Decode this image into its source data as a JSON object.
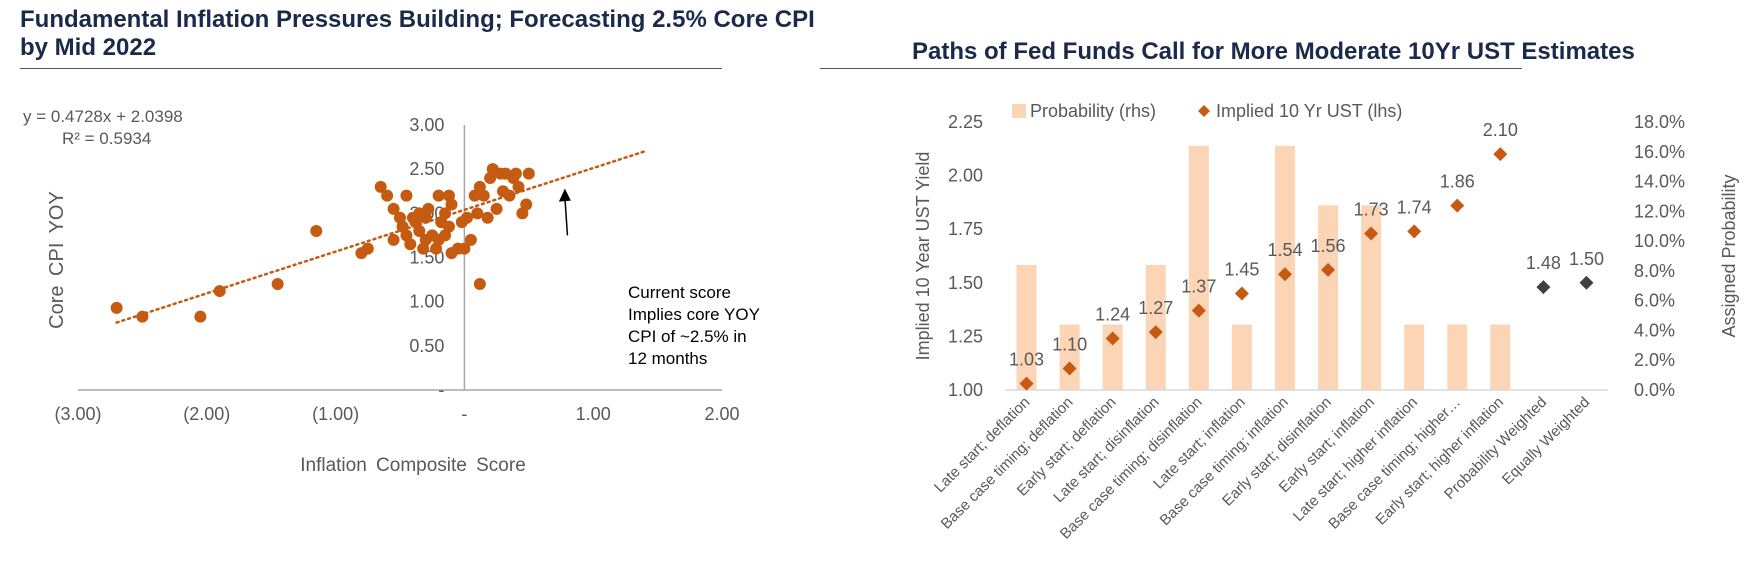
{
  "colors": {
    "title": "#1b2a4a",
    "scatter_point": "#c55a11",
    "trendline": "#c55a11",
    "bar_fill": "#fbd5b5",
    "diamond": "#c55a11",
    "weighted_diamond": "#404040",
    "axis_text": "#595959"
  },
  "left_panel": {
    "title": "Fundamental Inflation Pressures Building; Forecasting 2.5% Core CPI by Mid 2022",
    "equation": "y = 0.4728x + 2.0398",
    "r_squared": "R² = 0.5934",
    "annotation_lines": [
      "Current score",
      "Implies core YOY",
      "CPI of ~2.5% in",
      "12 months"
    ]
  },
  "right_panel": {
    "title": "Paths of Fed Funds Call for More Moderate 10Yr UST Estimates"
  },
  "chart_data": [
    {
      "type": "scatter",
      "xlabel": "Inflation Composite Score",
      "ylabel": "Core CPI YOY",
      "xlim": [
        -3.0,
        2.0
      ],
      "ylim": [
        0.0,
        3.0
      ],
      "x_ticks": [
        -3,
        -2,
        -1,
        0,
        1,
        2
      ],
      "x_tick_labels": [
        "(3.00)",
        "(2.00)",
        "(1.00)",
        "-",
        "1.00",
        "2.00"
      ],
      "y_ticks": [
        0,
        0.5,
        1,
        1.5,
        2,
        2.5,
        3
      ],
      "y_tick_labels": [
        "-",
        "0.50",
        "1.00",
        "1.50",
        "2.00",
        "2.50",
        "3.00"
      ],
      "trendline": {
        "slope": 0.4728,
        "intercept": 2.0398,
        "x_range": [
          -2.7,
          1.4
        ],
        "style": "dotted"
      },
      "points": [
        [
          -2.7,
          0.93
        ],
        [
          -2.5,
          0.83
        ],
        [
          -2.05,
          0.83
        ],
        [
          -1.9,
          1.12
        ],
        [
          -1.45,
          1.2
        ],
        [
          -1.15,
          1.8
        ],
        [
          -0.8,
          1.55
        ],
        [
          -0.75,
          1.6
        ],
        [
          -0.65,
          2.3
        ],
        [
          -0.6,
          2.2
        ],
        [
          -0.55,
          2.05
        ],
        [
          -0.55,
          1.7
        ],
        [
          -0.5,
          1.95
        ],
        [
          -0.48,
          1.85
        ],
        [
          -0.45,
          2.2
        ],
        [
          -0.45,
          1.75
        ],
        [
          -0.42,
          1.65
        ],
        [
          -0.4,
          1.95
        ],
        [
          -0.38,
          1.9
        ],
        [
          -0.35,
          2.0
        ],
        [
          -0.35,
          1.8
        ],
        [
          -0.32,
          1.6
        ],
        [
          -0.3,
          1.7
        ],
        [
          -0.3,
          1.95
        ],
        [
          -0.28,
          2.05
        ],
        [
          -0.25,
          1.75
        ],
        [
          -0.22,
          1.6
        ],
        [
          -0.2,
          1.7
        ],
        [
          -0.2,
          2.2
        ],
        [
          -0.18,
          1.9
        ],
        [
          -0.15,
          2.0
        ],
        [
          -0.15,
          1.75
        ],
        [
          -0.12,
          2.2
        ],
        [
          -0.12,
          1.85
        ],
        [
          -0.1,
          2.1
        ],
        [
          -0.1,
          1.55
        ],
        [
          -0.05,
          1.6
        ],
        [
          -0.02,
          1.9
        ],
        [
          0.0,
          1.6
        ],
        [
          0.02,
          1.95
        ],
        [
          0.05,
          1.7
        ],
        [
          0.08,
          2.2
        ],
        [
          0.1,
          2.0
        ],
        [
          0.12,
          2.3
        ],
        [
          0.12,
          1.2
        ],
        [
          0.15,
          2.2
        ],
        [
          0.18,
          1.95
        ],
        [
          0.2,
          2.4
        ],
        [
          0.22,
          2.5
        ],
        [
          0.25,
          2.05
        ],
        [
          0.28,
          2.45
        ],
        [
          0.3,
          2.25
        ],
        [
          0.32,
          2.45
        ],
        [
          0.35,
          2.2
        ],
        [
          0.38,
          2.4
        ],
        [
          0.4,
          2.45
        ],
        [
          0.42,
          2.3
        ],
        [
          0.45,
          2.0
        ],
        [
          0.48,
          2.1
        ],
        [
          0.5,
          2.45
        ]
      ],
      "annotation_arrow": {
        "from": [
          0.8,
          1.75
        ],
        "to": [
          0.78,
          2.28
        ]
      }
    },
    {
      "type": "bar",
      "categories": [
        "Late start; deflation",
        "Base case timing; deflation",
        "Early start; deflation",
        "Late start; disinflation",
        "Base case timing; disinflation",
        "Late start; inflation",
        "Base case timing; inflation",
        "Early start; disinflation",
        "Early start; inflation",
        "Late start; higher inflation",
        "Base case timing; higher…",
        "Early start; higher inflation",
        "Probability Weighted",
        "Equally Weighted"
      ],
      "ylabel_left": "Implied 10 Year UST Yield",
      "ylabel_right": "Assigned Probability",
      "ylim_left": [
        1.0,
        2.25
      ],
      "ylim_right": [
        0.0,
        0.18
      ],
      "y_left_ticks": [
        "1.00",
        "1.25",
        "1.50",
        "1.75",
        "2.00",
        "2.25"
      ],
      "y_right_ticks": [
        "0.0%",
        "2.0%",
        "4.0%",
        "6.0%",
        "8.0%",
        "10.0%",
        "12.0%",
        "14.0%",
        "16.0%",
        "18.0%"
      ],
      "legend": [
        "Probability (rhs)",
        "Implied 10 Yr UST (lhs)"
      ],
      "legend_position": "top",
      "series": [
        {
          "name": "Probability (rhs)",
          "type": "bar",
          "axis": "right",
          "values": [
            0.084,
            0.044,
            0.044,
            0.084,
            0.164,
            0.044,
            0.164,
            0.124,
            0.124,
            0.044,
            0.044,
            0.044,
            null,
            null
          ]
        },
        {
          "name": "Implied 10 Yr UST (lhs)",
          "type": "scatter-diamond",
          "axis": "left",
          "values": [
            1.03,
            1.1,
            1.24,
            1.27,
            1.37,
            1.45,
            1.54,
            1.56,
            1.73,
            1.74,
            1.86,
            2.1,
            1.48,
            1.5
          ],
          "labels": [
            "1.03",
            "1.10",
            "1.24",
            "1.27",
            "1.37",
            "1.45",
            "1.54",
            "1.56",
            "1.73",
            "1.74",
            "1.86",
            "2.10",
            "1.48",
            "1.50"
          ]
        }
      ]
    }
  ]
}
